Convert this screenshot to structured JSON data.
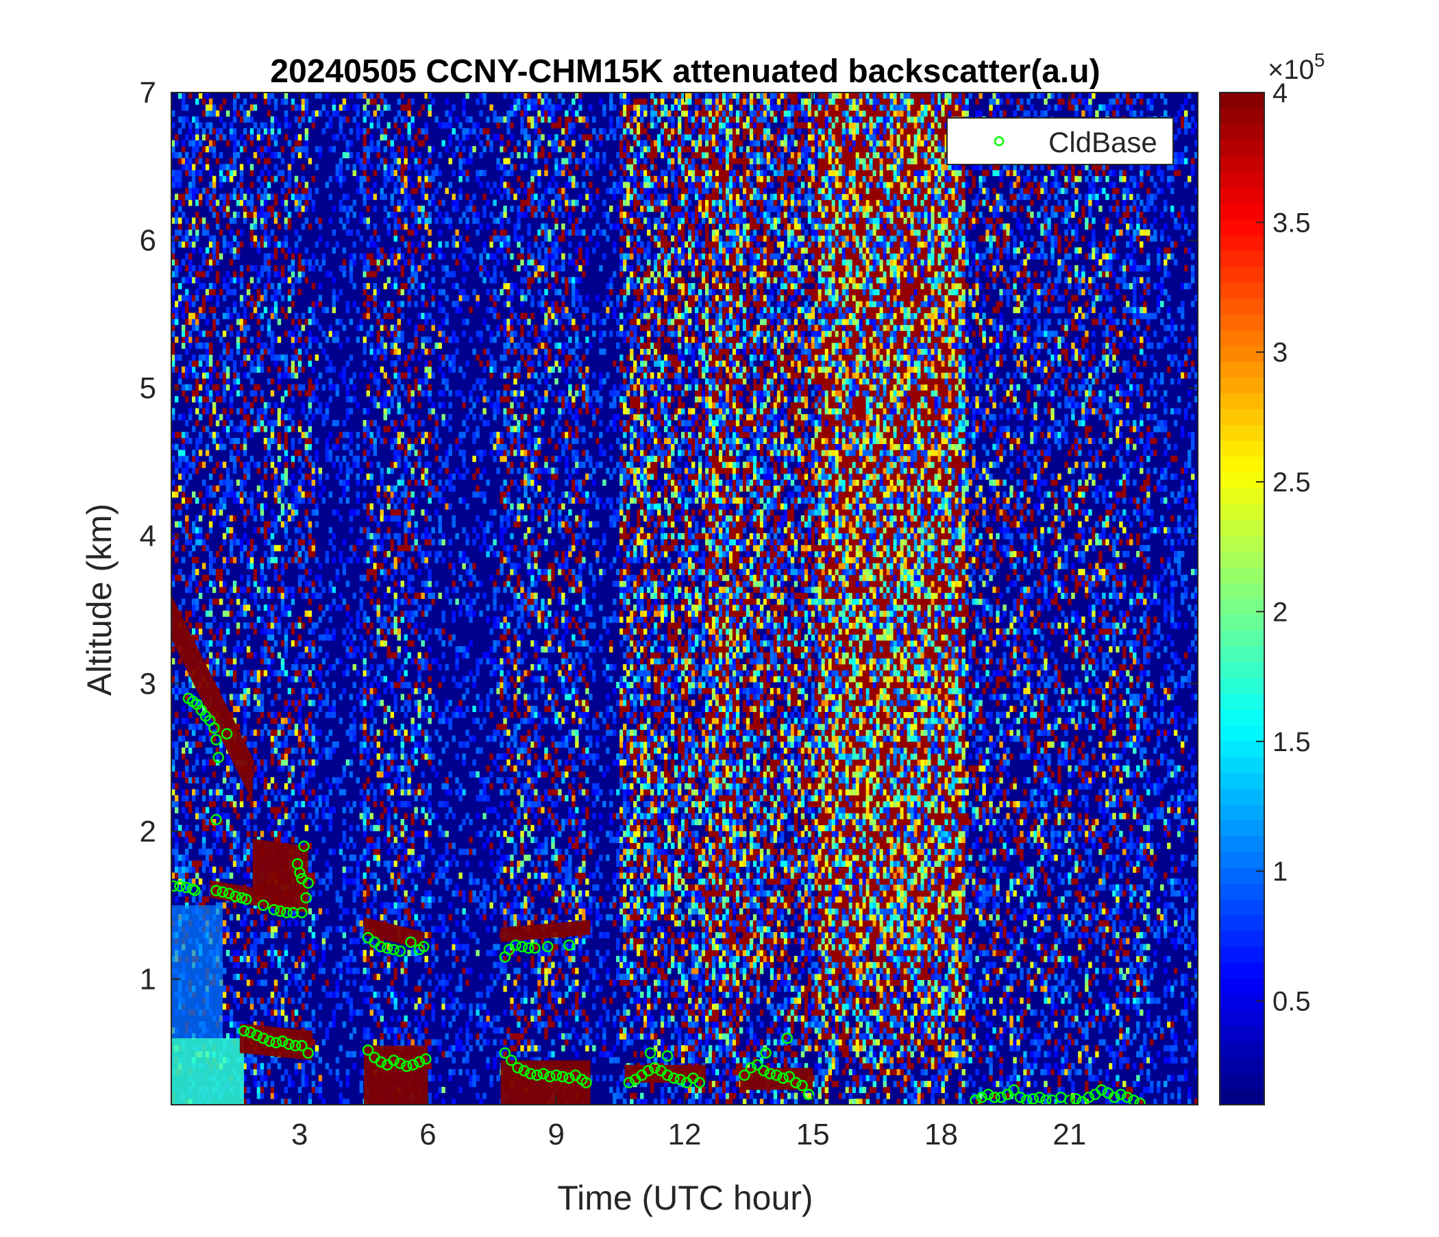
{
  "chart_data": {
    "type": "heatmap",
    "title": "20240505 CCNY-CHM15K attenuated backscatter(a.u)",
    "xlabel": "Time (UTC hour)",
    "ylabel": "Altitude (km)",
    "xlim": [
      0,
      24
    ],
    "ylim": [
      0.15,
      7
    ],
    "xticks": [
      3,
      6,
      9,
      12,
      15,
      18,
      21
    ],
    "yticks": [
      1,
      2,
      3,
      4,
      5,
      6,
      7
    ],
    "colorbar": {
      "colormap": "jet",
      "clim": [
        10000,
        400000
      ],
      "exponent_label": "×10",
      "exponent_power": "5",
      "ticks": [
        0.5,
        1,
        1.5,
        2,
        2.5,
        3,
        3.5,
        4
      ],
      "tick_labels": [
        "0.5",
        "1",
        "1.5",
        "2",
        "2.5",
        "3",
        "3.5",
        "4"
      ]
    },
    "legend": {
      "location": "top-right",
      "entries": [
        "CldBase"
      ],
      "marker": "circle",
      "color": "#00ff00"
    },
    "background_noise_segments": [
      {
        "t0": 0.0,
        "t1": 3.35,
        "level": 0.2
      },
      {
        "t0": 3.35,
        "t1": 4.45,
        "level": 0.02
      },
      {
        "t0": 4.45,
        "t1": 6.05,
        "level": 0.2
      },
      {
        "t0": 6.05,
        "t1": 7.65,
        "level": 0.04
      },
      {
        "t0": 7.65,
        "t1": 9.8,
        "level": 0.22
      },
      {
        "t0": 9.8,
        "t1": 10.5,
        "level": 0.02
      },
      {
        "t0": 10.5,
        "t1": 12.5,
        "level": 0.45
      },
      {
        "t0": 12.5,
        "t1": 13.3,
        "level": 0.65
      },
      {
        "t0": 13.3,
        "t1": 15.1,
        "level": 0.5
      },
      {
        "t0": 15.1,
        "t1": 18.6,
        "level": 0.8
      },
      {
        "t0": 18.6,
        "t1": 22.85,
        "level": 0.22
      },
      {
        "t0": 22.85,
        "t1": 24.0,
        "level": 0.05
      }
    ],
    "cloud_layers": [
      {
        "t0": 0.0,
        "t1": 1.9,
        "base_start": 3.3,
        "base_end": 2.2,
        "thickness": 0.3
      },
      {
        "t0": 0.9,
        "t1": 1.9,
        "base_start": 1.55,
        "base_end": 1.5,
        "thickness": 0.12
      },
      {
        "t0": 1.9,
        "t1": 3.2,
        "base_start": 1.5,
        "base_end": 1.45,
        "thickness": 0.45
      },
      {
        "t0": 1.6,
        "t1": 3.3,
        "base_start": 0.5,
        "base_end": 0.45,
        "thickness": 0.2
      },
      {
        "t0": 4.5,
        "t1": 5.9,
        "base_start": 1.3,
        "base_end": 1.2,
        "thickness": 0.12
      },
      {
        "t0": 4.5,
        "t1": 6.0,
        "base_start": 0.15,
        "base_end": 0.15,
        "thickness": 0.4
      },
      {
        "t0": 7.7,
        "t1": 9.8,
        "base_start": 1.25,
        "base_end": 1.3,
        "thickness": 0.1
      },
      {
        "t0": 7.7,
        "t1": 9.8,
        "base_start": 0.15,
        "base_end": 0.15,
        "thickness": 0.3
      },
      {
        "t0": 10.6,
        "t1": 12.5,
        "base_start": 0.3,
        "base_end": 0.3,
        "thickness": 0.12
      },
      {
        "t0": 13.3,
        "t1": 15.0,
        "base_start": 0.25,
        "base_end": 0.25,
        "thickness": 0.15
      }
    ],
    "cldbase_points": [
      [
        0.05,
        1.63
      ],
      [
        0.2,
        1.63
      ],
      [
        0.35,
        1.62
      ],
      [
        0.5,
        1.61
      ],
      [
        0.55,
        1.6
      ],
      [
        0.4,
        2.9
      ],
      [
        0.5,
        2.88
      ],
      [
        0.6,
        2.86
      ],
      [
        0.7,
        2.82
      ],
      [
        0.8,
        2.78
      ],
      [
        0.9,
        2.75
      ],
      [
        1.0,
        2.7
      ],
      [
        1.05,
        2.62
      ],
      [
        1.1,
        2.5
      ],
      [
        1.05,
        2.08
      ],
      [
        1.3,
        2.66
      ],
      [
        1.05,
        1.6
      ],
      [
        1.2,
        1.59
      ],
      [
        1.35,
        1.58
      ],
      [
        1.5,
        1.56
      ],
      [
        1.65,
        1.55
      ],
      [
        1.75,
        1.54
      ],
      [
        2.15,
        1.5
      ],
      [
        2.4,
        1.47
      ],
      [
        2.55,
        1.46
      ],
      [
        2.7,
        1.45
      ],
      [
        2.85,
        1.45
      ],
      [
        2.95,
        1.78
      ],
      [
        3.0,
        1.72
      ],
      [
        3.05,
        1.68
      ],
      [
        3.1,
        1.9
      ],
      [
        3.15,
        1.55
      ],
      [
        3.2,
        1.65
      ],
      [
        3.05,
        1.45
      ],
      [
        1.7,
        0.65
      ],
      [
        1.85,
        0.64
      ],
      [
        2.0,
        0.62
      ],
      [
        2.15,
        0.6
      ],
      [
        2.3,
        0.58
      ],
      [
        2.45,
        0.57
      ],
      [
        2.6,
        0.58
      ],
      [
        2.75,
        0.56
      ],
      [
        2.9,
        0.55
      ],
      [
        3.05,
        0.55
      ],
      [
        3.2,
        0.5
      ],
      [
        4.6,
        1.28
      ],
      [
        4.75,
        1.25
      ],
      [
        4.9,
        1.22
      ],
      [
        5.05,
        1.21
      ],
      [
        5.2,
        1.2
      ],
      [
        5.35,
        1.19
      ],
      [
        5.6,
        1.25
      ],
      [
        5.8,
        1.2
      ],
      [
        5.9,
        1.22
      ],
      [
        4.6,
        0.52
      ],
      [
        4.75,
        0.47
      ],
      [
        4.9,
        0.44
      ],
      [
        5.05,
        0.42
      ],
      [
        5.2,
        0.45
      ],
      [
        5.35,
        0.43
      ],
      [
        5.5,
        0.41
      ],
      [
        5.65,
        0.42
      ],
      [
        5.8,
        0.44
      ],
      [
        5.95,
        0.46
      ],
      [
        7.8,
        1.15
      ],
      [
        7.9,
        1.2
      ],
      [
        8.05,
        1.23
      ],
      [
        8.2,
        1.22
      ],
      [
        8.35,
        1.21
      ],
      [
        8.5,
        1.21
      ],
      [
        8.8,
        1.22
      ],
      [
        9.3,
        1.23
      ],
      [
        7.8,
        0.5
      ],
      [
        7.95,
        0.45
      ],
      [
        8.1,
        0.4
      ],
      [
        8.25,
        0.38
      ],
      [
        8.4,
        0.36
      ],
      [
        8.55,
        0.35
      ],
      [
        8.7,
        0.36
      ],
      [
        8.85,
        0.34
      ],
      [
        9.0,
        0.35
      ],
      [
        9.15,
        0.34
      ],
      [
        9.3,
        0.33
      ],
      [
        9.45,
        0.35
      ],
      [
        9.6,
        0.32
      ],
      [
        9.7,
        0.3
      ],
      [
        10.7,
        0.3
      ],
      [
        10.85,
        0.32
      ],
      [
        11.0,
        0.35
      ],
      [
        11.15,
        0.38
      ],
      [
        11.3,
        0.4
      ],
      [
        11.45,
        0.38
      ],
      [
        11.6,
        0.35
      ],
      [
        11.75,
        0.33
      ],
      [
        11.9,
        0.32
      ],
      [
        12.05,
        0.3
      ],
      [
        12.2,
        0.33
      ],
      [
        12.35,
        0.3
      ],
      [
        11.2,
        0.5
      ],
      [
        11.6,
        0.48
      ],
      [
        13.4,
        0.35
      ],
      [
        13.55,
        0.4
      ],
      [
        13.7,
        0.42
      ],
      [
        13.85,
        0.38
      ],
      [
        14.0,
        0.36
      ],
      [
        14.15,
        0.35
      ],
      [
        14.3,
        0.33
      ],
      [
        14.45,
        0.34
      ],
      [
        14.6,
        0.3
      ],
      [
        14.75,
        0.28
      ],
      [
        14.9,
        0.22
      ],
      [
        14.4,
        0.6
      ],
      [
        13.9,
        0.5
      ],
      [
        18.8,
        0.18
      ],
      [
        18.95,
        0.2
      ],
      [
        19.1,
        0.22
      ],
      [
        19.25,
        0.2
      ],
      [
        19.4,
        0.2
      ],
      [
        19.55,
        0.22
      ],
      [
        19.7,
        0.25
      ],
      [
        19.85,
        0.2
      ],
      [
        20.0,
        0.18
      ],
      [
        20.15,
        0.19
      ],
      [
        20.3,
        0.2
      ],
      [
        20.45,
        0.18
      ],
      [
        20.6,
        0.18
      ],
      [
        20.8,
        0.2
      ],
      [
        21.0,
        0.18
      ],
      [
        21.15,
        0.19
      ],
      [
        21.3,
        0.17
      ],
      [
        21.45,
        0.2
      ],
      [
        21.6,
        0.22
      ],
      [
        21.75,
        0.25
      ],
      [
        21.9,
        0.23
      ],
      [
        22.05,
        0.2
      ],
      [
        22.2,
        0.22
      ],
      [
        22.35,
        0.2
      ],
      [
        22.5,
        0.18
      ],
      [
        22.65,
        0.16
      ]
    ]
  }
}
